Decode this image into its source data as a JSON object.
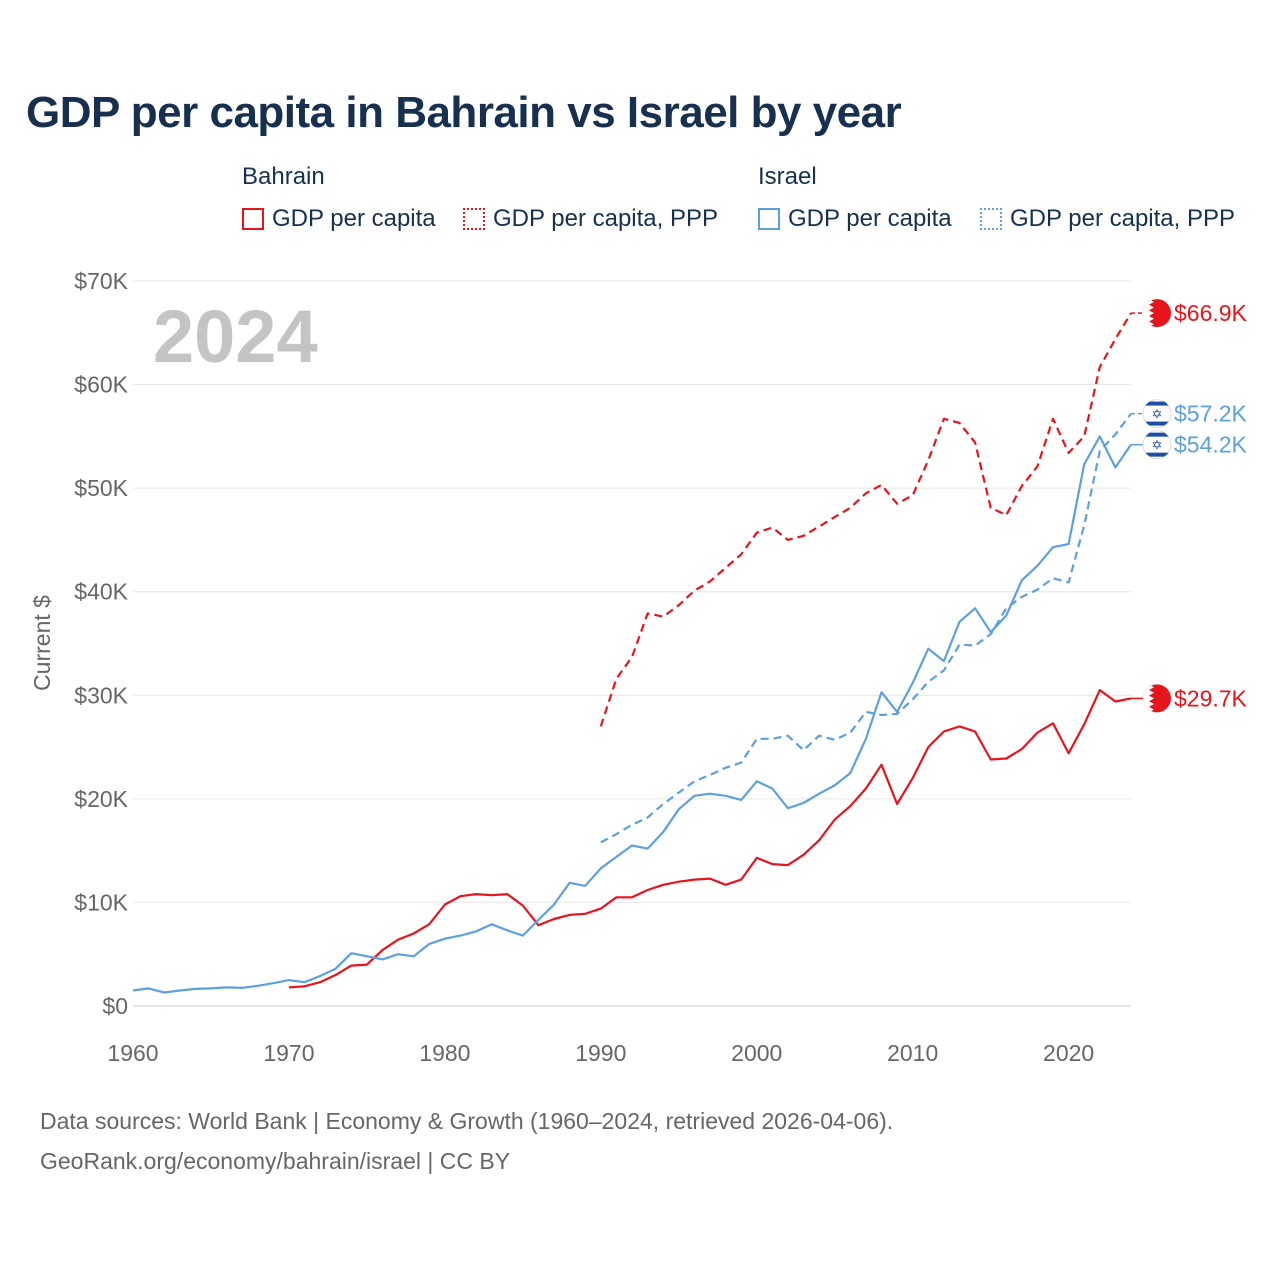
{
  "title": "GDP per capita in Bahrain vs Israel by year",
  "legend": {
    "groups": [
      {
        "name": "Bahrain",
        "color": "#e8141c",
        "items": [
          {
            "label": "GDP per capita",
            "style": "solid"
          },
          {
            "label": "GDP per capita, PPP",
            "style": "dashed"
          }
        ]
      },
      {
        "name": "Israel",
        "color": "#5da0e0",
        "items": [
          {
            "label": "GDP per capita",
            "style": "solid"
          },
          {
            "label": "GDP per capita, PPP",
            "style": "dashed"
          }
        ]
      }
    ]
  },
  "footer": {
    "line1": "Data sources: World Bank | Economy & Growth (1960–2024, retrieved 2026-04-06).",
    "line2": "GeoRank.org/economy/bahrain/israel | CC BY"
  },
  "chart_data": {
    "type": "line",
    "title": "GDP per capita in Bahrain vs Israel by year",
    "ylabel": "Current $",
    "xlabel": "",
    "year_label": "2024",
    "xlim": [
      1960,
      2024
    ],
    "ylim": [
      0,
      70000
    ],
    "x_ticks": [
      1960,
      1970,
      1980,
      1990,
      2000,
      2010,
      2020
    ],
    "y_ticks": [
      0,
      10000,
      20000,
      30000,
      40000,
      50000,
      60000,
      70000
    ],
    "y_tick_labels": [
      "$0",
      "$10K",
      "$20K",
      "$30K",
      "$40K",
      "$50K",
      "$60K",
      "$70K"
    ],
    "grid": true,
    "series": [
      {
        "name": "Bahrain GDP per capita",
        "color": "#e8141c",
        "dashed": false,
        "end_label": "$29.7K",
        "flag": "bahrain",
        "x": [
          1970,
          1971,
          1972,
          1973,
          1974,
          1975,
          1976,
          1977,
          1978,
          1979,
          1980,
          1981,
          1982,
          1983,
          1984,
          1985,
          1986,
          1987,
          1988,
          1989,
          1990,
          1991,
          1992,
          1993,
          1994,
          1995,
          1996,
          1997,
          1998,
          1999,
          2000,
          2001,
          2002,
          2003,
          2004,
          2005,
          2006,
          2007,
          2008,
          2009,
          2010,
          2011,
          2012,
          2013,
          2014,
          2015,
          2016,
          2017,
          2018,
          2019,
          2020,
          2021,
          2022,
          2023,
          2024
        ],
        "y": [
          1800,
          1900,
          2300,
          3000,
          3900,
          4000,
          5400,
          6400,
          7000,
          7900,
          9800,
          10600,
          10800,
          10700,
          10800,
          9700,
          7800,
          8400,
          8800,
          8900,
          9400,
          10500,
          10500,
          11200,
          11700,
          12000,
          12200,
          12300,
          11700,
          12200,
          14300,
          13700,
          13600,
          14600,
          16000,
          18000,
          19300,
          21000,
          23300,
          19500,
          22000,
          25000,
          26500,
          27000,
          26500,
          23800,
          23900,
          24800,
          26400,
          27300,
          24400,
          27200,
          30500,
          29400,
          29700
        ]
      },
      {
        "name": "Bahrain GDP per capita, PPP",
        "color": "#e8141c",
        "dashed": true,
        "end_label": "$66.9K",
        "flag": "bahrain",
        "x": [
          1990,
          1991,
          1992,
          1993,
          1994,
          1995,
          1996,
          1997,
          1998,
          1999,
          2000,
          2001,
          2002,
          2003,
          2004,
          2005,
          2006,
          2007,
          2008,
          2009,
          2010,
          2011,
          2012,
          2013,
          2014,
          2015,
          2016,
          2017,
          2018,
          2019,
          2020,
          2021,
          2022,
          2023,
          2024
        ],
        "y": [
          27000,
          31600,
          33700,
          37900,
          37600,
          38700,
          40100,
          41000,
          42300,
          43600,
          45700,
          46200,
          45000,
          45400,
          46300,
          47200,
          48100,
          49500,
          50300,
          48500,
          49300,
          52700,
          56700,
          56300,
          54400,
          48100,
          47400,
          50200,
          52100,
          56700,
          53400,
          55000,
          61700,
          64400,
          66900
        ]
      },
      {
        "name": "Israel GDP per capita",
        "color": "#5da0e0",
        "dashed": false,
        "end_label": "$54.2K",
        "flag": "israel",
        "x": [
          1960,
          1961,
          1962,
          1963,
          1964,
          1965,
          1966,
          1967,
          1968,
          1969,
          1970,
          1971,
          1972,
          1973,
          1974,
          1975,
          1976,
          1977,
          1978,
          1979,
          1980,
          1981,
          1982,
          1983,
          1984,
          1985,
          1986,
          1987,
          1988,
          1989,
          1990,
          1991,
          1992,
          1993,
          1994,
          1995,
          1996,
          1997,
          1998,
          1999,
          2000,
          2001,
          2002,
          2003,
          2004,
          2005,
          2006,
          2007,
          2008,
          2009,
          2010,
          2011,
          2012,
          2013,
          2014,
          2015,
          2016,
          2017,
          2018,
          2019,
          2020,
          2021,
          2022,
          2023,
          2024
        ],
        "y": [
          1500,
          1700,
          1300,
          1500,
          1650,
          1700,
          1800,
          1750,
          1950,
          2200,
          2500,
          2300,
          2900,
          3600,
          5100,
          4800,
          4500,
          5000,
          4800,
          6000,
          6500,
          6800,
          7200,
          7900,
          7300,
          6800,
          8300,
          9800,
          11900,
          11600,
          13300,
          14400,
          15500,
          15200,
          16800,
          19000,
          20300,
          20500,
          20300,
          19900,
          21700,
          21000,
          19100,
          19600,
          20500,
          21300,
          22500,
          25800,
          30300,
          28400,
          31200,
          34500,
          33300,
          37100,
          38400,
          36100,
          37700,
          41100,
          42500,
          44300,
          44600,
          52300,
          55000,
          52000,
          54200
        ]
      },
      {
        "name": "Israel GDP per capita, PPP",
        "color": "#5da0e0",
        "dashed": true,
        "end_label": "$57.2K",
        "flag": "israel",
        "x": [
          1990,
          1991,
          1992,
          1993,
          1994,
          1995,
          1996,
          1997,
          1998,
          1999,
          2000,
          2001,
          2002,
          2003,
          2004,
          2005,
          2006,
          2007,
          2008,
          2009,
          2010,
          2011,
          2012,
          2013,
          2014,
          2015,
          2016,
          2017,
          2018,
          2019,
          2020,
          2021,
          2022,
          2023,
          2024
        ],
        "y": [
          15800,
          16600,
          17500,
          18200,
          19500,
          20600,
          21700,
          22300,
          23000,
          23500,
          25800,
          25800,
          26100,
          24700,
          26100,
          25700,
          26400,
          28400,
          28100,
          28200,
          29600,
          31300,
          32400,
          34900,
          34800,
          35900,
          38400,
          39500,
          40200,
          41300,
          40900,
          46400,
          53600,
          55200,
          57200
        ]
      }
    ]
  }
}
